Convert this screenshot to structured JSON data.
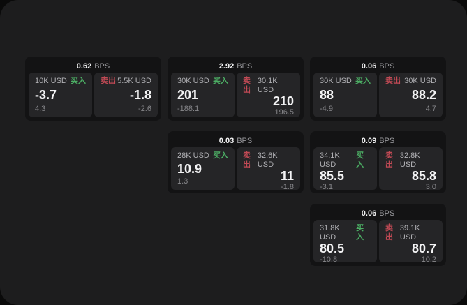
{
  "labels": {
    "bps": "BPS",
    "buy": "买入",
    "sell": "卖出"
  },
  "colors": {
    "buy": "#4cae64",
    "sell": "#c24a55",
    "page_bg": "#0a0a0a",
    "panel_bg": "#1d1d1e",
    "card_bg": "#131314",
    "tile_bg": "#252527"
  },
  "cards": [
    {
      "bps": "0.62",
      "buy": {
        "amount": "10K USD",
        "price": "-3.7",
        "delta": "4.3"
      },
      "sell": {
        "amount": "5.5K USD",
        "price": "-1.8",
        "delta": "-2.6"
      }
    },
    {
      "bps": "2.92",
      "buy": {
        "amount": "30K USD",
        "price": "201",
        "delta": "-188.1"
      },
      "sell": {
        "amount": "30.1K USD",
        "price": "210",
        "delta": "196.5"
      }
    },
    {
      "bps": "0.06",
      "buy": {
        "amount": "30K USD",
        "price": "88",
        "delta": "-4.9"
      },
      "sell": {
        "amount": "30K USD",
        "price": "88.2",
        "delta": "4.7"
      }
    },
    {
      "bps": "0.03",
      "buy": {
        "amount": "28K USD",
        "price": "10.9",
        "delta": "1.3"
      },
      "sell": {
        "amount": "32.6K USD",
        "price": "11",
        "delta": "-1.8"
      }
    },
    {
      "bps": "0.09",
      "buy": {
        "amount": "34.1K USD",
        "price": "85.5",
        "delta": "-3.1"
      },
      "sell": {
        "amount": "32.8K USD",
        "price": "85.8",
        "delta": "3.0"
      }
    },
    {
      "bps": "0.06",
      "buy": {
        "amount": "31.8K USD",
        "price": "80.5",
        "delta": "-10.8"
      },
      "sell": {
        "amount": "39.1K USD",
        "price": "80.7",
        "delta": "10.2"
      }
    }
  ]
}
